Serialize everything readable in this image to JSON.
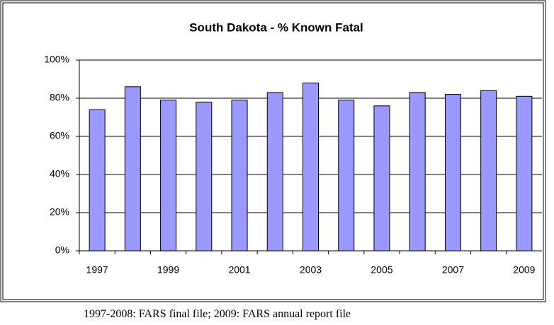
{
  "chart_data": {
    "type": "bar",
    "title": "South Dakota - % Known Fatal",
    "categories": [
      "1997",
      null,
      "1999",
      null,
      "2001",
      null,
      "2003",
      null,
      "2005",
      null,
      "2007",
      null,
      "2009"
    ],
    "values": [
      74,
      86,
      79,
      78,
      79,
      83,
      88,
      79,
      76,
      83,
      82,
      84,
      81
    ],
    "color": "#9999ff",
    "ylim": [
      0,
      100
    ],
    "yticks": [
      {
        "value": 0,
        "label": "0%"
      },
      {
        "value": 20,
        "label": "20%"
      },
      {
        "value": 40,
        "label": "40%"
      },
      {
        "value": 60,
        "label": "60%"
      },
      {
        "value": 80,
        "label": "80%"
      },
      {
        "value": 100,
        "label": "100%"
      }
    ],
    "grid": true
  },
  "footnote": "1997-2008: FARS final file; 2009: FARS annual report file"
}
